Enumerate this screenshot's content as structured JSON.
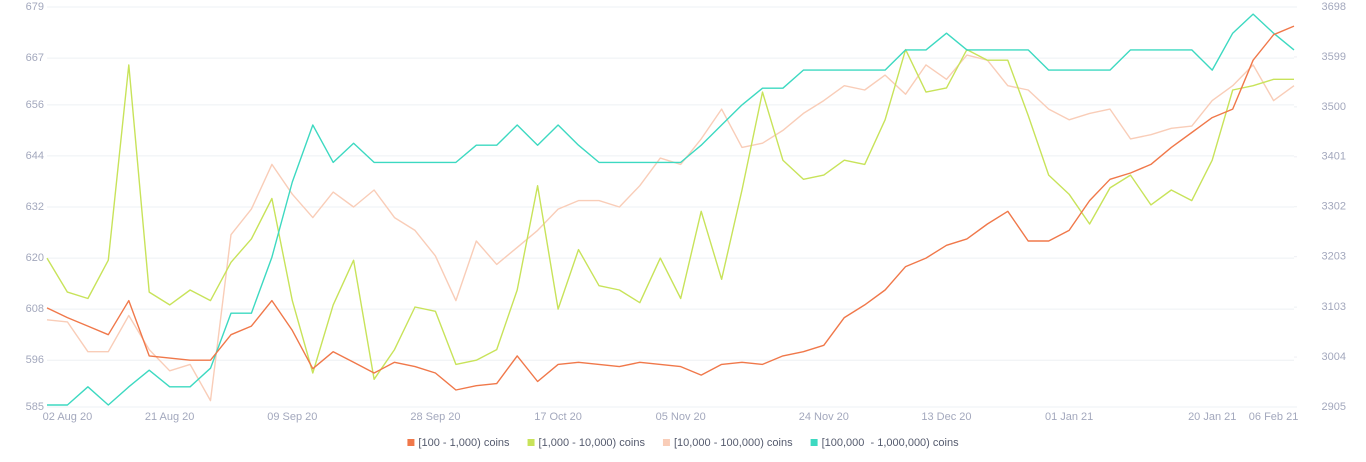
{
  "chart_data": {
    "type": "line",
    "categories": [
      null,
      "02 Aug 20",
      null,
      null,
      null,
      null,
      "21 Aug 20",
      null,
      null,
      null,
      null,
      null,
      "09 Sep 20",
      null,
      null,
      null,
      null,
      null,
      null,
      "28 Sep 20",
      null,
      null,
      null,
      null,
      null,
      "17 Oct 20",
      null,
      null,
      null,
      null,
      null,
      "05 Nov 20",
      null,
      null,
      null,
      null,
      null,
      null,
      "24 Nov 20",
      null,
      null,
      null,
      null,
      null,
      "13 Dec 20",
      null,
      null,
      null,
      null,
      null,
      "01 Jan 21",
      null,
      null,
      null,
      null,
      null,
      null,
      "20 Jan 21",
      null,
      null,
      "06 Feb 21",
      null
    ],
    "series": [
      {
        "name": "[100 - 1,000) coins",
        "color": "#f0784a",
        "axis": "y",
        "values": [
          608.3,
          606,
          604,
          602,
          610,
          597,
          596.5,
          596,
          596,
          602,
          604,
          610,
          603,
          594,
          598,
          595.5,
          593,
          595.5,
          594.5,
          593,
          589,
          590,
          590.5,
          597,
          591,
          595,
          595.5,
          595,
          594.5,
          595.5,
          595,
          594.5,
          592.5,
          595,
          595.5,
          595,
          597,
          598,
          599.5,
          606,
          609,
          612.5,
          618,
          620,
          623,
          624.5,
          628,
          631,
          624,
          624,
          626.5,
          633.5,
          638.5,
          640,
          642,
          646,
          649.5,
          653,
          655,
          666.5,
          672.5,
          674.5
        ]
      },
      {
        "name": "[1,000 - 10,000) coins",
        "color": "#c8e35a",
        "axis": "y",
        "values": [
          620,
          612,
          610.5,
          619.5,
          665.4,
          612,
          609,
          612.5,
          610,
          619,
          624.5,
          634,
          610,
          593,
          609,
          619.5,
          591.5,
          598.5,
          608.5,
          607.5,
          595,
          596,
          598.5,
          612.5,
          637,
          608,
          622,
          613.5,
          612.5,
          609.5,
          620,
          610.5,
          631,
          615,
          636,
          659,
          643,
          638.5,
          639.5,
          643,
          642,
          652.5,
          669,
          659,
          660,
          669,
          666.5,
          666.5,
          653.5,
          639.5,
          635,
          628,
          636.5,
          639.5,
          632.5,
          636,
          633.5,
          643,
          659.5,
          660.5,
          662,
          662
        ]
      },
      {
        "name": "[10,000 - 100,000) coins",
        "color": "#f9cdb8",
        "axis": "y",
        "values": [
          605.5,
          605,
          598,
          598,
          606.5,
          598.5,
          593.5,
          595,
          586.5,
          625.5,
          631.5,
          642,
          635,
          629.5,
          635.5,
          632,
          636,
          629.5,
          626.5,
          620.5,
          610,
          624,
          618.5,
          622.5,
          626.5,
          631.5,
          633.5,
          633.5,
          632,
          637,
          643.5,
          642,
          648,
          655,
          646,
          647,
          650,
          654,
          657,
          660.5,
          659.5,
          663,
          658.5,
          665.4,
          662,
          667.7,
          666.5,
          660.5,
          659.5,
          655,
          652.5,
          654,
          655,
          648,
          649,
          650.5,
          651,
          657,
          660.5,
          665.4,
          657,
          660.5
        ]
      },
      {
        "name": "[100,000  - 1,000,000) coins",
        "color": "#3dd9c1",
        "axis": "y2",
        "values": [
          2909,
          2909,
          2945,
          2909,
          2945,
          2978,
          2945,
          2945,
          2982,
          3091,
          3091,
          3202,
          3351,
          3464,
          3390,
          3428,
          3390,
          3390,
          3390,
          3390,
          3390,
          3424,
          3424,
          3464,
          3424,
          3464,
          3424,
          3390,
          3390,
          3390,
          3390,
          3390,
          3424,
          3464,
          3504,
          3537,
          3537,
          3573,
          3573,
          3573,
          3573,
          3573,
          3613,
          3613,
          3646,
          3613,
          3613,
          3613,
          3613,
          3573,
          3573,
          3573,
          3573,
          3613,
          3613,
          3613,
          3613,
          3573,
          3646,
          3684,
          3646,
          3613
        ]
      }
    ],
    "ylim": [
      585,
      679
    ],
    "yticks": [
      585,
      596,
      608,
      620,
      632,
      644,
      656,
      667,
      679
    ],
    "y2lim": [
      2905,
      3698
    ],
    "y2ticks": [
      2905,
      3004,
      3103,
      3203,
      3302,
      3401,
      3500,
      3599,
      3698
    ],
    "grid": true,
    "legend": "bottom"
  }
}
